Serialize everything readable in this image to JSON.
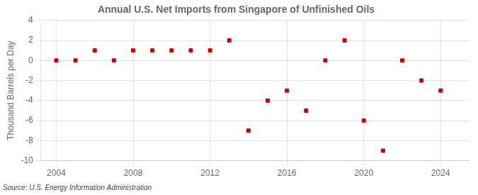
{
  "chart_data": {
    "type": "scatter",
    "title": "Annual U.S. Net Imports from Singapore of Unfinished Oils",
    "ylabel": "Thousand Barrels per Day",
    "source": "Source: U.S. Energy Information Administration",
    "x": [
      2004,
      2005,
      2006,
      2007,
      2008,
      2009,
      2010,
      2011,
      2012,
      2013,
      2014,
      2015,
      2016,
      2017,
      2018,
      2019,
      2020,
      2021,
      2022,
      2023,
      2024
    ],
    "values": [
      0,
      0,
      1,
      0,
      1,
      1,
      1,
      1,
      1,
      2,
      -7,
      -4,
      -3,
      -5,
      0,
      2,
      -6,
      -9,
      0,
      -2,
      -3
    ],
    "color": "#cc0000",
    "marker": "square",
    "xlim": [
      2003.2,
      2025.5
    ],
    "xticks": [
      2004,
      2008,
      2012,
      2016,
      2020,
      2024
    ],
    "ylim": [
      -10,
      4
    ],
    "yticks": [
      -10,
      -8,
      -6,
      -4,
      -2,
      0,
      2,
      4
    ],
    "grid": true
  }
}
